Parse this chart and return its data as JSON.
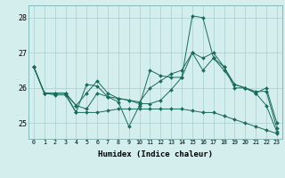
{
  "title": "",
  "xlabel": "Humidex (Indice chaleur)",
  "xlim": [
    -0.5,
    23.5
  ],
  "ylim": [
    24.55,
    28.35
  ],
  "yticks": [
    25,
    26,
    27,
    28
  ],
  "xticks": [
    0,
    1,
    2,
    3,
    4,
    5,
    6,
    7,
    8,
    9,
    10,
    11,
    12,
    13,
    14,
    15,
    16,
    17,
    18,
    19,
    20,
    21,
    22,
    23
  ],
  "bg_color": "#d4eeee",
  "line_color": "#1a6b5a",
  "lines": [
    {
      "x": [
        0,
        1,
        2,
        3,
        4,
        5,
        6,
        7,
        8,
        9,
        10,
        11,
        12,
        13,
        14,
        15,
        16,
        17,
        18,
        19,
        20,
        21,
        22,
        23
      ],
      "y": [
        26.6,
        25.85,
        25.85,
        25.85,
        25.3,
        26.1,
        26.05,
        25.75,
        25.6,
        24.9,
        25.5,
        26.5,
        26.35,
        26.3,
        26.3,
        28.05,
        28.0,
        26.85,
        26.6,
        26.0,
        26.0,
        25.9,
        25.9,
        24.85
      ]
    },
    {
      "x": [
        0,
        1,
        2,
        3,
        4,
        5,
        6,
        7,
        8,
        9,
        10,
        11,
        12,
        13,
        14,
        15,
        16,
        17,
        18,
        19,
        20,
        21,
        22,
        23
      ],
      "y": [
        26.6,
        25.85,
        25.85,
        25.85,
        25.5,
        25.85,
        26.2,
        25.85,
        25.7,
        25.65,
        25.6,
        26.0,
        26.2,
        26.4,
        26.5,
        27.0,
        26.85,
        27.0,
        26.6,
        26.1,
        26.0,
        25.85,
        26.0,
        25.0
      ]
    },
    {
      "x": [
        0,
        1,
        2,
        3,
        4,
        5,
        6,
        7,
        8,
        9,
        10,
        11,
        12,
        13,
        14,
        15,
        16,
        17,
        18,
        19,
        20,
        21,
        22,
        23
      ],
      "y": [
        26.6,
        25.85,
        25.85,
        25.85,
        25.5,
        25.4,
        25.85,
        25.75,
        25.7,
        25.65,
        25.55,
        25.55,
        25.65,
        25.95,
        26.3,
        27.0,
        26.5,
        26.85,
        26.5,
        26.1,
        26.0,
        25.85,
        25.5,
        24.75
      ]
    },
    {
      "x": [
        0,
        1,
        2,
        3,
        4,
        5,
        6,
        7,
        8,
        9,
        10,
        11,
        12,
        13,
        14,
        15,
        16,
        17,
        18,
        19,
        20,
        21,
        22,
        23
      ],
      "y": [
        26.6,
        25.85,
        25.8,
        25.8,
        25.3,
        25.3,
        25.3,
        25.35,
        25.4,
        25.4,
        25.4,
        25.4,
        25.4,
        25.4,
        25.4,
        25.35,
        25.3,
        25.3,
        25.2,
        25.1,
        25.0,
        24.9,
        24.8,
        24.7
      ]
    }
  ]
}
